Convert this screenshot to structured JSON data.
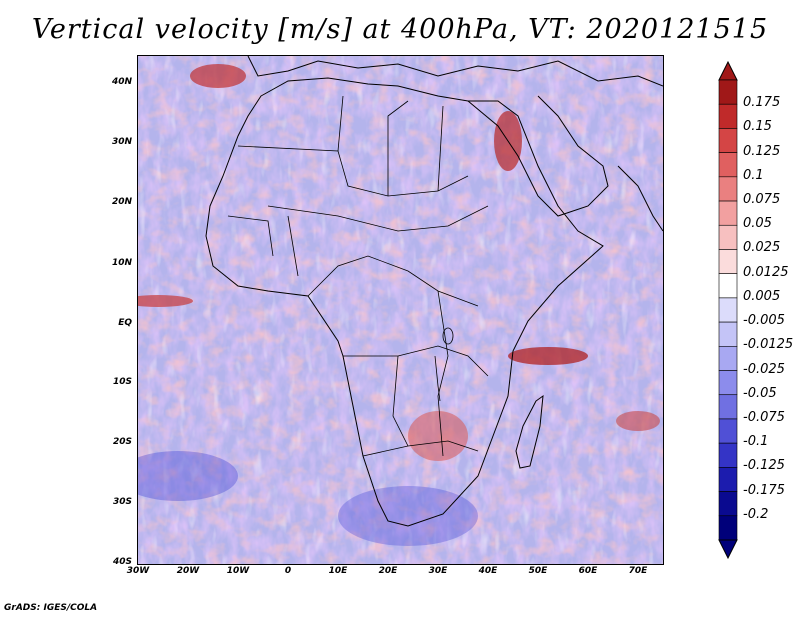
{
  "title": "Vertical velocity [m/s] at 400hPa, VT: 2020121515",
  "footer": "GrADS: IGES/COLA",
  "map": {
    "projection": "latlon",
    "lon_range": [
      -30,
      75
    ],
    "lat_range": [
      -40,
      45
    ],
    "lat_ticks": [
      "40N",
      "30N",
      "20N",
      "10N",
      "EQ",
      "10S",
      "20S",
      "30S",
      "40S"
    ],
    "lon_ticks": [
      "30W",
      "20W",
      "10W",
      "0",
      "10E",
      "20E",
      "30E",
      "40E",
      "50E",
      "60E",
      "70E"
    ]
  },
  "colorbar": {
    "labels": [
      "0.175",
      "0.15",
      "0.125",
      "0.1",
      "0.075",
      "0.05",
      "0.025",
      "0.0125",
      "0.005",
      "-0.005",
      "-0.0125",
      "-0.025",
      "-0.05",
      "-0.075",
      "-0.1",
      "-0.125",
      "-0.175",
      "-0.2"
    ],
    "colors": [
      "#a01818",
      "#c02a2a",
      "#d44545",
      "#e06060",
      "#ea8080",
      "#f2a0a0",
      "#f7c0c0",
      "#fbdcdc",
      "#ffffff",
      "#dcdcfb",
      "#c4c4f7",
      "#a8a8f2",
      "#8c8cec",
      "#7070e2",
      "#5050d6",
      "#3434c6",
      "#1c1cae",
      "#0a0a90",
      "#00007a"
    ]
  },
  "style": {
    "ocean_tint": "#b8b8ee",
    "land_tint": "#c4b8e0",
    "border_color": "#000000"
  }
}
